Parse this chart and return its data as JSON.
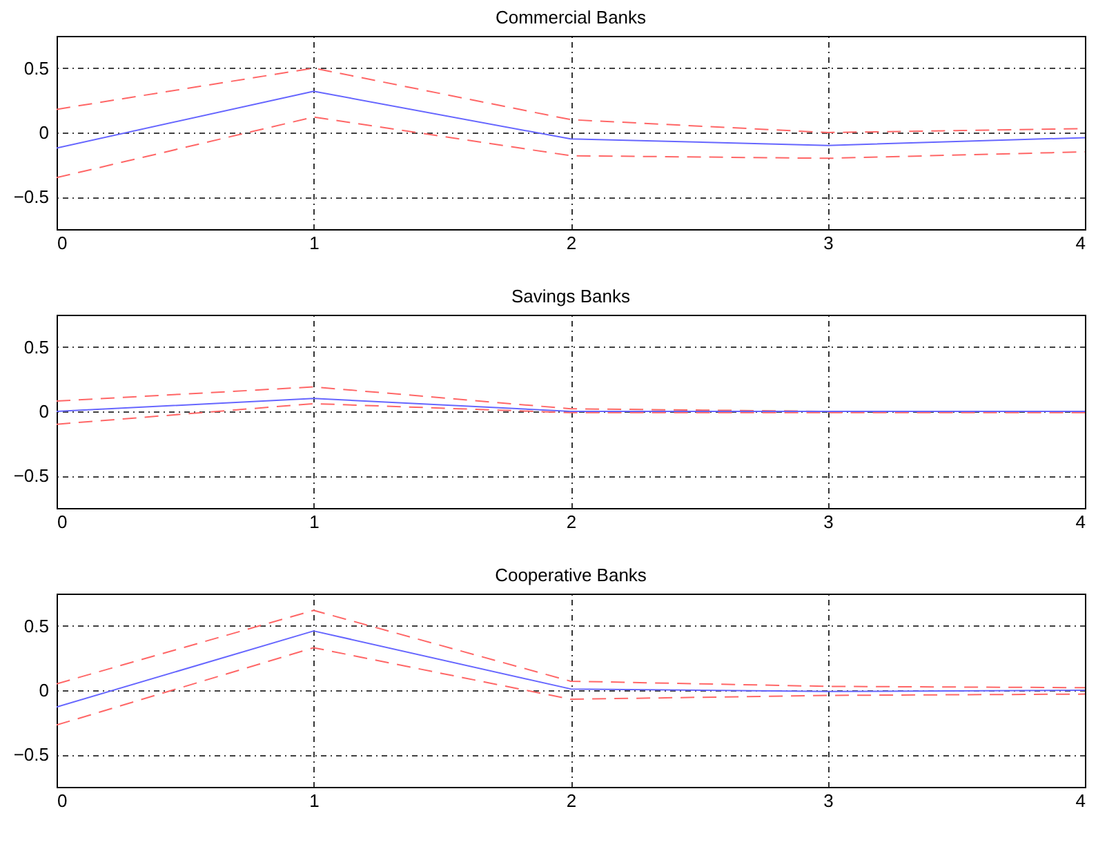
{
  "chart_data": [
    {
      "type": "line",
      "title": "Commercial Banks",
      "x": [
        0,
        1,
        2,
        3,
        4
      ],
      "xlim": [
        0,
        4
      ],
      "xticks": [
        0,
        1,
        2,
        3,
        4
      ],
      "ylim": [
        -0.75,
        0.75
      ],
      "yticks": [
        -0.5,
        0,
        0.5
      ],
      "grid": true,
      "series": [
        {
          "color": "#ff6666",
          "line_style": "dashed",
          "values": [
            0.18,
            0.5,
            0.1,
            0.0,
            0.03
          ]
        },
        {
          "color": "#ff6666",
          "line_style": "dashed",
          "values": [
            -0.35,
            0.12,
            -0.18,
            -0.2,
            -0.15
          ]
        },
        {
          "color": "#6666ff",
          "line_style": "solid",
          "values": [
            -0.12,
            0.32,
            -0.05,
            -0.1,
            -0.04
          ]
        }
      ]
    },
    {
      "type": "line",
      "title": "Savings Banks",
      "x": [
        0,
        1,
        2,
        3,
        4
      ],
      "xlim": [
        0,
        4
      ],
      "xticks": [
        0,
        1,
        2,
        3,
        4
      ],
      "ylim": [
        -0.75,
        0.75
      ],
      "yticks": [
        -0.5,
        0,
        0.5
      ],
      "grid": true,
      "series": [
        {
          "color": "#ff6666",
          "line_style": "dashed",
          "values": [
            0.08,
            0.19,
            0.02,
            0.0,
            0.0
          ]
        },
        {
          "color": "#ff6666",
          "line_style": "dashed",
          "values": [
            -0.1,
            0.06,
            -0.01,
            -0.01,
            -0.01
          ]
        },
        {
          "color": "#6666ff",
          "line_style": "solid",
          "values": [
            0.0,
            0.1,
            0.0,
            0.0,
            0.0
          ]
        }
      ]
    },
    {
      "type": "line",
      "title": "Cooperative Banks",
      "x": [
        0,
        1,
        2,
        3,
        4
      ],
      "xlim": [
        0,
        4
      ],
      "xticks": [
        0,
        1,
        2,
        3,
        4
      ],
      "ylim": [
        -0.75,
        0.75
      ],
      "yticks": [
        -0.5,
        0,
        0.5
      ],
      "grid": true,
      "series": [
        {
          "color": "#ff6666",
          "line_style": "dashed",
          "values": [
            0.05,
            0.62,
            0.07,
            0.03,
            0.02
          ]
        },
        {
          "color": "#ff6666",
          "line_style": "dashed",
          "values": [
            -0.27,
            0.33,
            -0.07,
            -0.04,
            -0.03
          ]
        },
        {
          "color": "#6666ff",
          "line_style": "solid",
          "values": [
            -0.13,
            0.46,
            0.01,
            -0.01,
            0.0
          ]
        }
      ]
    }
  ]
}
